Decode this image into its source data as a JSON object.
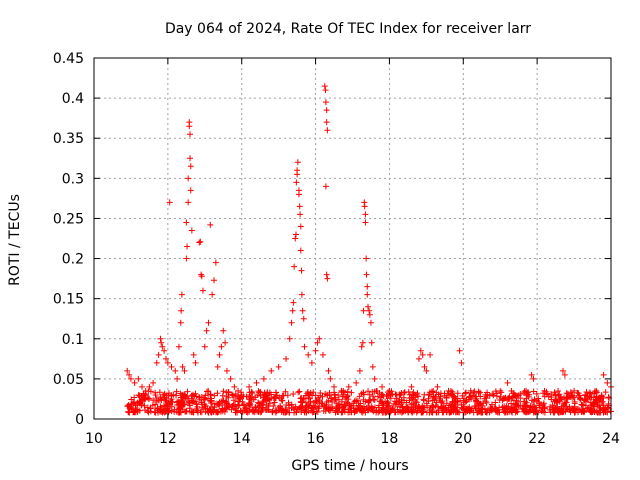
{
  "chart_data": {
    "type": "scatter",
    "title": "Day 064 of 2024, Rate Of TEC Index for receiver larr",
    "xlabel": "GPS time / hours",
    "ylabel": "ROTI / TECUs",
    "xlim": [
      10,
      24
    ],
    "ylim": [
      0,
      0.45
    ],
    "grid": true,
    "marker": "+",
    "marker_color": "#ff0000",
    "xticks": [
      {
        "value": 10,
        "label": "10"
      },
      {
        "value": 12,
        "label": "12"
      },
      {
        "value": 14,
        "label": "14"
      },
      {
        "value": 16,
        "label": "16"
      },
      {
        "value": 18,
        "label": "18"
      },
      {
        "value": 20,
        "label": "20"
      },
      {
        "value": 22,
        "label": "22"
      },
      {
        "value": 24,
        "label": "24"
      }
    ],
    "yticks": [
      {
        "value": 0,
        "label": "0"
      },
      {
        "value": 0.05,
        "label": "0.05"
      },
      {
        "value": 0.1,
        "label": "0.1"
      },
      {
        "value": 0.15,
        "label": "0.15"
      },
      {
        "value": 0.2,
        "label": "0.2"
      },
      {
        "value": 0.25,
        "label": "0.25"
      },
      {
        "value": 0.3,
        "label": "0.3"
      },
      {
        "value": 0.35,
        "label": "0.35"
      },
      {
        "value": 0.4,
        "label": "0.4"
      },
      {
        "value": 0.45,
        "label": "0.45"
      }
    ],
    "series": [
      {
        "name": "ROTI",
        "points": [
          [
            10.9,
            0.06
          ],
          [
            10.95,
            0.055
          ],
          [
            11.0,
            0.05
          ],
          [
            11.1,
            0.045
          ],
          [
            11.2,
            0.05
          ],
          [
            11.3,
            0.04
          ],
          [
            11.4,
            0.035
          ],
          [
            11.5,
            0.04
          ],
          [
            11.6,
            0.045
          ],
          [
            11.7,
            0.07
          ],
          [
            11.75,
            0.08
          ],
          [
            11.8,
            0.1
          ],
          [
            11.82,
            0.095
          ],
          [
            11.85,
            0.09
          ],
          [
            11.9,
            0.085
          ],
          [
            11.95,
            0.075
          ],
          [
            12.0,
            0.07
          ],
          [
            12.05,
            0.27
          ],
          [
            12.1,
            0.065
          ],
          [
            12.2,
            0.06
          ],
          [
            12.25,
            0.05
          ],
          [
            12.3,
            0.09
          ],
          [
            12.35,
            0.12
          ],
          [
            12.36,
            0.135
          ],
          [
            12.38,
            0.155
          ],
          [
            12.4,
            0.065
          ],
          [
            12.45,
            0.06
          ],
          [
            12.5,
            0.2
          ],
          [
            12.52,
            0.215
          ],
          [
            12.5,
            0.245
          ],
          [
            12.55,
            0.27
          ],
          [
            12.55,
            0.3
          ],
          [
            12.58,
            0.365
          ],
          [
            12.58,
            0.37
          ],
          [
            12.6,
            0.355
          ],
          [
            12.6,
            0.325
          ],
          [
            12.62,
            0.315
          ],
          [
            12.62,
            0.285
          ],
          [
            12.65,
            0.235
          ],
          [
            12.7,
            0.08
          ],
          [
            12.75,
            0.07
          ],
          [
            12.85,
            0.22
          ],
          [
            12.88,
            0.221
          ],
          [
            12.9,
            0.18
          ],
          [
            12.92,
            0.178
          ],
          [
            12.95,
            0.16
          ],
          [
            13.0,
            0.09
          ],
          [
            13.05,
            0.11
          ],
          [
            13.1,
            0.12
          ],
          [
            13.15,
            0.242
          ],
          [
            13.2,
            0.155
          ],
          [
            13.25,
            0.173
          ],
          [
            13.3,
            0.195
          ],
          [
            13.35,
            0.065
          ],
          [
            13.4,
            0.08
          ],
          [
            13.45,
            0.09
          ],
          [
            13.5,
            0.11
          ],
          [
            13.55,
            0.095
          ],
          [
            13.6,
            0.06
          ],
          [
            13.7,
            0.05
          ],
          [
            13.8,
            0.04
          ],
          [
            13.9,
            0.035
          ],
          [
            14.0,
            0.03
          ],
          [
            14.2,
            0.04
          ],
          [
            14.4,
            0.045
          ],
          [
            14.6,
            0.05
          ],
          [
            14.8,
            0.06
          ],
          [
            15.0,
            0.065
          ],
          [
            15.2,
            0.075
          ],
          [
            15.3,
            0.1
          ],
          [
            15.35,
            0.12
          ],
          [
            15.38,
            0.135
          ],
          [
            15.4,
            0.145
          ],
          [
            15.42,
            0.19
          ],
          [
            15.45,
            0.225
          ],
          [
            15.47,
            0.23
          ],
          [
            15.48,
            0.295
          ],
          [
            15.5,
            0.305
          ],
          [
            15.5,
            0.31
          ],
          [
            15.52,
            0.32
          ],
          [
            15.55,
            0.285
          ],
          [
            15.55,
            0.28
          ],
          [
            15.57,
            0.265
          ],
          [
            15.58,
            0.255
          ],
          [
            15.6,
            0.24
          ],
          [
            15.6,
            0.21
          ],
          [
            15.62,
            0.185
          ],
          [
            15.63,
            0.155
          ],
          [
            15.65,
            0.135
          ],
          [
            15.68,
            0.125
          ],
          [
            15.7,
            0.09
          ],
          [
            15.8,
            0.08
          ],
          [
            15.9,
            0.07
          ],
          [
            16.0,
            0.085
          ],
          [
            16.05,
            0.095
          ],
          [
            16.1,
            0.1
          ],
          [
            16.2,
            0.08
          ],
          [
            16.25,
            0.415
          ],
          [
            16.27,
            0.41
          ],
          [
            16.28,
            0.395
          ],
          [
            16.3,
            0.385
          ],
          [
            16.3,
            0.37
          ],
          [
            16.32,
            0.36
          ],
          [
            16.28,
            0.29
          ],
          [
            16.3,
            0.18
          ],
          [
            16.32,
            0.175
          ],
          [
            16.35,
            0.06
          ],
          [
            16.4,
            0.05
          ],
          [
            16.5,
            0.04
          ],
          [
            16.7,
            0.035
          ],
          [
            16.9,
            0.04
          ],
          [
            17.1,
            0.045
          ],
          [
            17.2,
            0.06
          ],
          [
            17.25,
            0.09
          ],
          [
            17.28,
            0.095
          ],
          [
            17.3,
            0.135
          ],
          [
            17.32,
            0.27
          ],
          [
            17.33,
            0.265
          ],
          [
            17.35,
            0.255
          ],
          [
            17.35,
            0.245
          ],
          [
            17.37,
            0.2
          ],
          [
            17.38,
            0.18
          ],
          [
            17.4,
            0.165
          ],
          [
            17.4,
            0.155
          ],
          [
            17.42,
            0.14
          ],
          [
            17.45,
            0.135
          ],
          [
            17.47,
            0.13
          ],
          [
            17.5,
            0.12
          ],
          [
            17.52,
            0.095
          ],
          [
            17.55,
            0.065
          ],
          [
            17.6,
            0.05
          ],
          [
            17.8,
            0.04
          ],
          [
            18.0,
            0.035
          ],
          [
            18.3,
            0.03
          ],
          [
            18.6,
            0.04
          ],
          [
            18.8,
            0.075
          ],
          [
            18.85,
            0.085
          ],
          [
            18.9,
            0.08
          ],
          [
            18.95,
            0.065
          ],
          [
            19.0,
            0.06
          ],
          [
            19.1,
            0.08
          ],
          [
            19.3,
            0.04
          ],
          [
            19.6,
            0.035
          ],
          [
            19.9,
            0.085
          ],
          [
            19.95,
            0.07
          ],
          [
            20.2,
            0.035
          ],
          [
            20.6,
            0.03
          ],
          [
            21.0,
            0.035
          ],
          [
            21.2,
            0.045
          ],
          [
            21.4,
            0.03
          ],
          [
            21.7,
            0.035
          ],
          [
            21.85,
            0.055
          ],
          [
            21.9,
            0.05
          ],
          [
            22.2,
            0.035
          ],
          [
            22.5,
            0.03
          ],
          [
            22.7,
            0.06
          ],
          [
            22.75,
            0.055
          ],
          [
            23.0,
            0.035
          ],
          [
            23.3,
            0.03
          ],
          [
            23.6,
            0.035
          ],
          [
            23.8,
            0.055
          ],
          [
            23.9,
            0.045
          ],
          [
            24.0,
            0.04
          ]
        ],
        "baseline_band": {
          "x_from": 10.9,
          "x_to": 24.0,
          "y_low": 0.008,
          "y_high": 0.035
        }
      }
    ]
  }
}
